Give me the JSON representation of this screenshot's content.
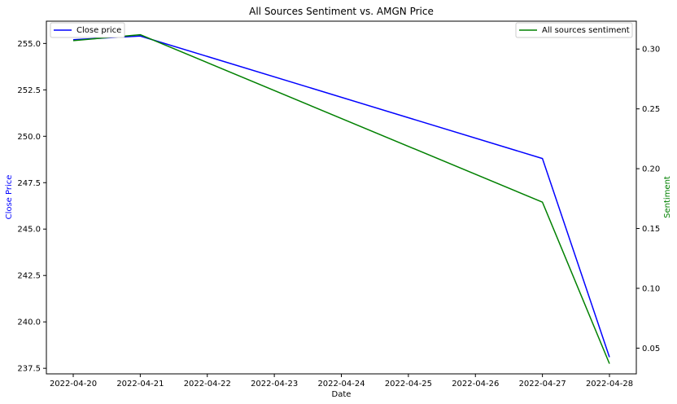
{
  "chart_data": {
    "type": "line",
    "title": "All Sources Sentiment vs. AMGN Price",
    "xlabel": "Date",
    "ylabel_left": "Close Price",
    "ylabel_right": "Sentiment",
    "x": [
      "2022-04-20",
      "2022-04-21",
      "2022-04-27",
      "2022-04-28"
    ],
    "x_ticks": [
      "2022-04-20",
      "2022-04-21",
      "2022-04-22",
      "2022-04-23",
      "2022-04-24",
      "2022-04-25",
      "2022-04-26",
      "2022-04-27",
      "2022-04-28"
    ],
    "y_left_ticks": [
      "237.5",
      "240.0",
      "242.5",
      "245.0",
      "247.5",
      "250.0",
      "252.5",
      "255.0"
    ],
    "y_right_ticks": [
      "0.05",
      "0.10",
      "0.15",
      "0.20",
      "0.25",
      "0.30"
    ],
    "ylim_left": [
      237.2,
      256.2
    ],
    "ylim_right": [
      0.0285,
      0.3233
    ],
    "grid": false,
    "series": [
      {
        "name": "Close price",
        "axis": "left",
        "color": "#0000ff",
        "values": [
          255.2,
          255.4,
          248.8,
          238.1
        ],
        "legend_position": "top-left"
      },
      {
        "name": "All sources sentiment",
        "axis": "right",
        "color": "#008000",
        "values": [
          0.307,
          0.312,
          0.172,
          0.037
        ],
        "legend_position": "top-right"
      }
    ]
  }
}
